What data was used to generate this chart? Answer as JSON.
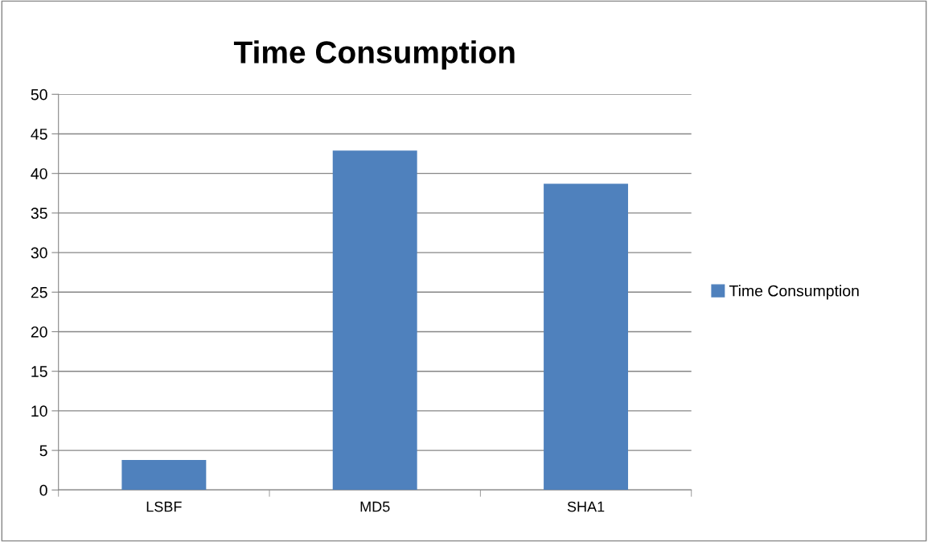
{
  "chart_data": {
    "type": "bar",
    "title": "Time Consumption",
    "categories": [
      "LSBF",
      "MD5",
      "SHA1"
    ],
    "series": [
      {
        "name": "Time Consumption",
        "color": "#4f81bd",
        "values": [
          3.8,
          42.9,
          38.7
        ]
      }
    ],
    "ylim": [
      0,
      50
    ],
    "yticks": [
      0,
      5,
      10,
      15,
      20,
      25,
      30,
      35,
      40,
      45,
      50
    ],
    "grid": "y",
    "legend": "right"
  }
}
